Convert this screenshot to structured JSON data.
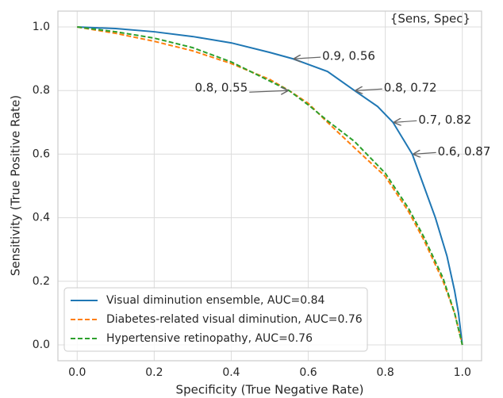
{
  "chart_data": {
    "type": "line",
    "xlabel": "Specificity (True Negative Rate)",
    "ylabel": "Sensitivity (True Positive Rate)",
    "corner_note": "{Sens, Spec}",
    "xlim": [
      -0.05,
      1.05
    ],
    "ylim": [
      -0.05,
      1.05
    ],
    "xticks": [
      {
        "value": 0,
        "label": "0.0"
      },
      0.2,
      0.4,
      0.6,
      0.8,
      {
        "value": 1,
        "label": "1.0"
      }
    ],
    "yticks": [
      {
        "value": 0,
        "label": "0.0"
      },
      0.2,
      0.4,
      0.6,
      0.8,
      {
        "value": 1,
        "label": "1.0"
      }
    ],
    "grid": true,
    "legend": "lower left",
    "series": [
      {
        "name": "Visual diminution ensemble, AUC=0.84",
        "color": "#1f77b4",
        "dash": "solid",
        "x": [
          0,
          0.1,
          0.2,
          0.3,
          0.4,
          0.5,
          0.56,
          0.65,
          0.72,
          0.78,
          0.82,
          0.87,
          0.9,
          0.93,
          0.96,
          0.98,
          0.99,
          1.0
        ],
        "values": [
          1,
          0.995,
          0.985,
          0.97,
          0.95,
          0.92,
          0.9,
          0.86,
          0.8,
          0.75,
          0.7,
          0.6,
          0.5,
          0.4,
          0.28,
          0.17,
          0.1,
          0
        ]
      },
      {
        "name": "Diabetes-related visual diminution, AUC=0.76",
        "color": "#ff7f0e",
        "dash": "dashed",
        "x": [
          0,
          0.1,
          0.2,
          0.3,
          0.4,
          0.5,
          0.55,
          0.6,
          0.65,
          0.72,
          0.8,
          0.86,
          0.9,
          0.95,
          0.98,
          1.0
        ],
        "values": [
          1,
          0.98,
          0.955,
          0.925,
          0.885,
          0.835,
          0.8,
          0.76,
          0.7,
          0.62,
          0.53,
          0.42,
          0.33,
          0.2,
          0.1,
          0
        ]
      },
      {
        "name": "Hypertensive retinopathy, AUC=0.76",
        "color": "#2ca02c",
        "dash": "dashed",
        "x": [
          0,
          0.1,
          0.2,
          0.3,
          0.4,
          0.5,
          0.55,
          0.6,
          0.65,
          0.72,
          0.8,
          0.86,
          0.9,
          0.95,
          0.98,
          1.0
        ],
        "values": [
          1,
          0.985,
          0.965,
          0.935,
          0.89,
          0.83,
          0.8,
          0.755,
          0.705,
          0.64,
          0.54,
          0.43,
          0.34,
          0.21,
          0.1,
          0
        ]
      }
    ],
    "annotations": [
      {
        "text": "0.9, 0.56",
        "x": 0.56,
        "y": 0.9
      },
      {
        "text": "0.8, 0.72",
        "x": 0.72,
        "y": 0.8
      },
      {
        "text": "0.7, 0.82",
        "x": 0.82,
        "y": 0.7
      },
      {
        "text": "0.6, 0.87",
        "x": 0.87,
        "y": 0.6
      },
      {
        "text": "0.8, 0.55",
        "x": 0.55,
        "y": 0.8
      }
    ]
  }
}
